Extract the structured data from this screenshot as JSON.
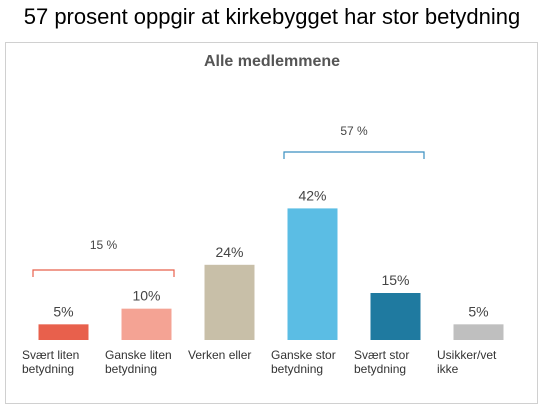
{
  "title": "57 prosent oppgir at kirkebygget har stor betydning",
  "chart_data": {
    "type": "bar",
    "title": "Alle medlemmene",
    "categories": [
      "Svært liten\nbetydning",
      "Ganske liten\nbetydning",
      "Verken eller",
      "Ganske stor\nbetydning",
      "Svært stor\nbetydning",
      "Usikker/vet\nikke"
    ],
    "values": [
      5,
      10,
      24,
      42,
      15,
      5
    ],
    "value_labels": [
      "5%",
      "10%",
      "24%",
      "42%",
      "15%",
      "5%"
    ],
    "colors": [
      "#e8604c",
      "#f4a394",
      "#c8bfa8",
      "#5bbde4",
      "#1f7aa0",
      "#bfbfbf"
    ],
    "ylim": [
      0,
      45
    ],
    "annotations": [
      {
        "text": "15 %",
        "color": "#e8604c"
      },
      {
        "text": "57 %",
        "color": "#3a8fc0"
      }
    ]
  }
}
